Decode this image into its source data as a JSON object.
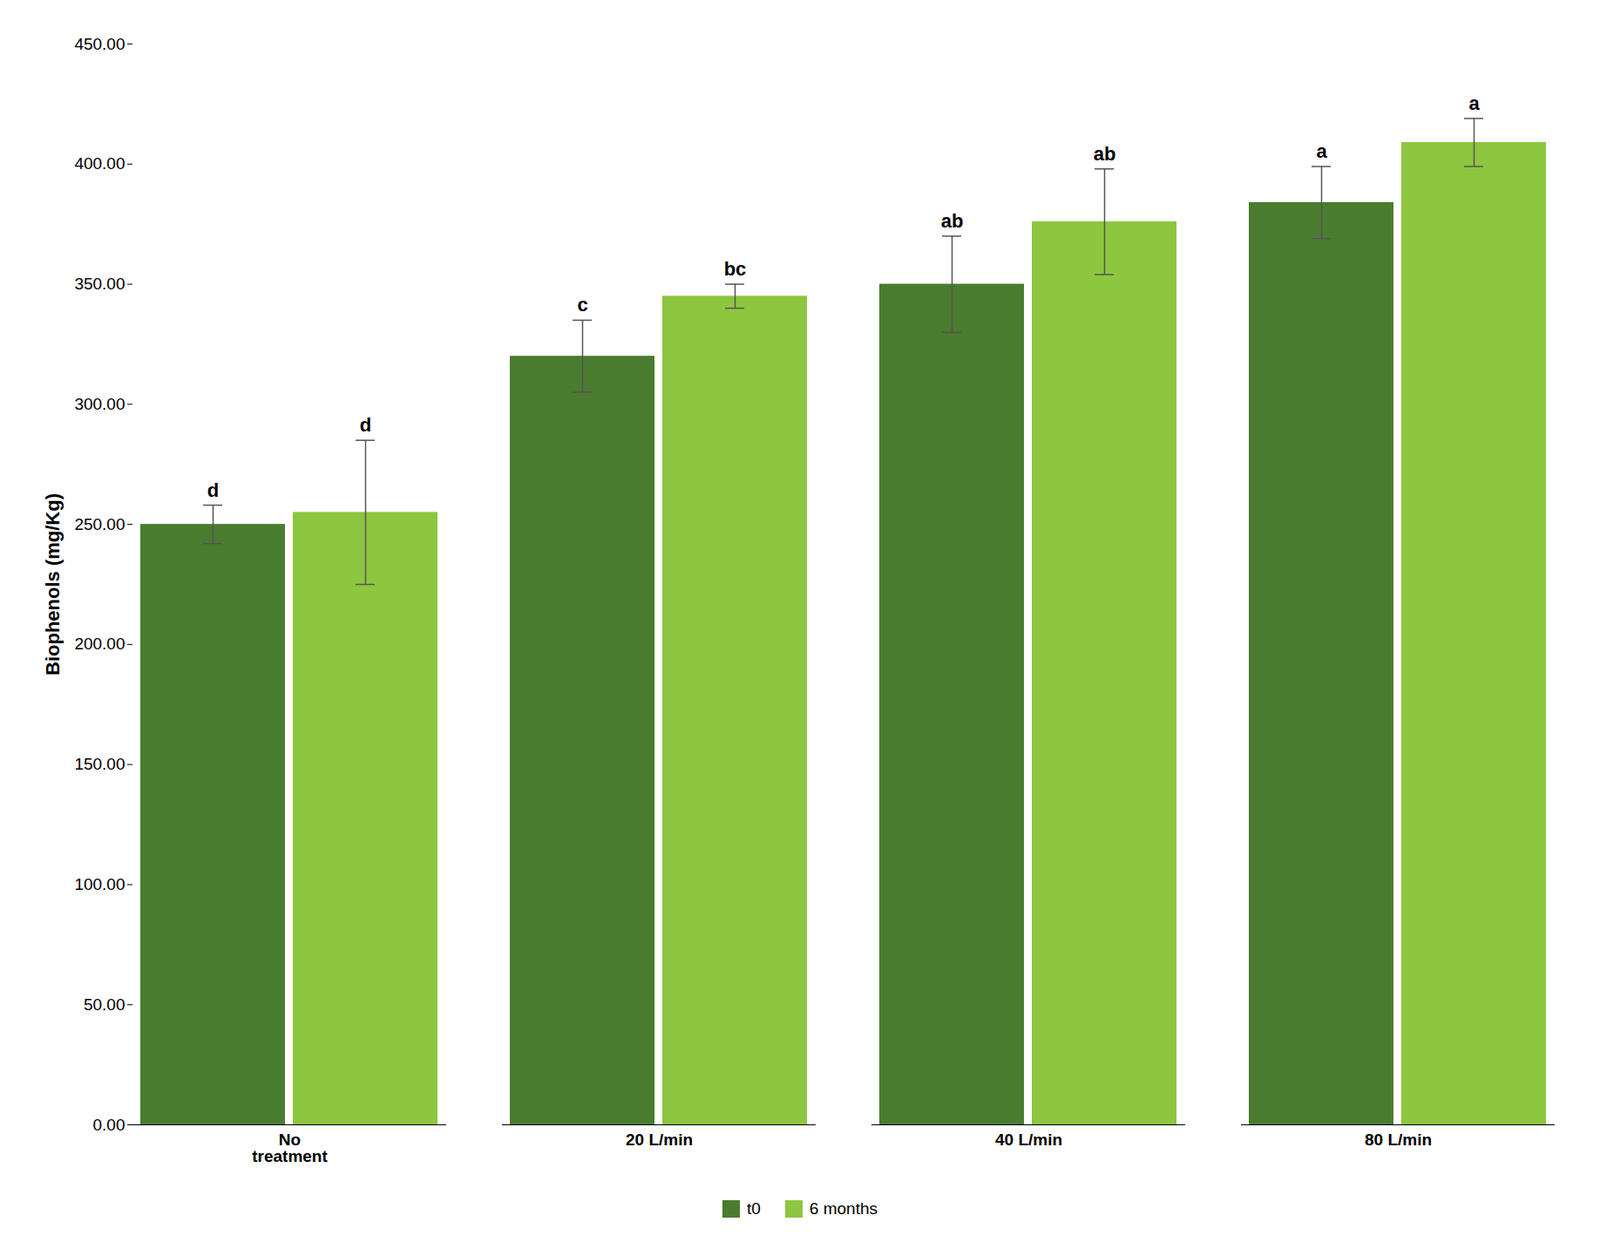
{
  "chart_data": {
    "type": "bar",
    "categories": [
      "No\ntreatment",
      "20 L/min",
      "40 L/min",
      "80 L/min"
    ],
    "series": [
      {
        "name": "t0",
        "color": "#4a7c2f",
        "values": [
          250,
          320,
          350,
          384
        ],
        "errors": [
          8,
          15,
          20,
          15
        ],
        "significance": [
          "d",
          "c",
          "ab",
          "a"
        ]
      },
      {
        "name": "6 months",
        "color": "#8dc63f",
        "values": [
          255,
          345,
          376,
          409
        ],
        "errors": [
          30,
          5,
          22,
          10
        ],
        "significance": [
          "d",
          "bc",
          "ab",
          "a"
        ]
      }
    ],
    "ylabel": "Biophenols (mg/Kg)",
    "ylim": [
      0,
      450
    ],
    "yticks": [
      {
        "value": 0,
        "label": "0.00"
      },
      {
        "value": 50,
        "label": "50.00"
      },
      {
        "value": 100,
        "label": "100.00"
      },
      {
        "value": 150,
        "label": "150.00"
      },
      {
        "value": 200,
        "label": "200.00"
      },
      {
        "value": 250,
        "label": "250.00"
      },
      {
        "value": 300,
        "label": "300.00"
      },
      {
        "value": 350,
        "label": "350.00"
      },
      {
        "value": 400,
        "label": "400.00"
      },
      {
        "value": 450,
        "label": "450.00"
      }
    ],
    "grid": false,
    "legend": "bottom"
  }
}
